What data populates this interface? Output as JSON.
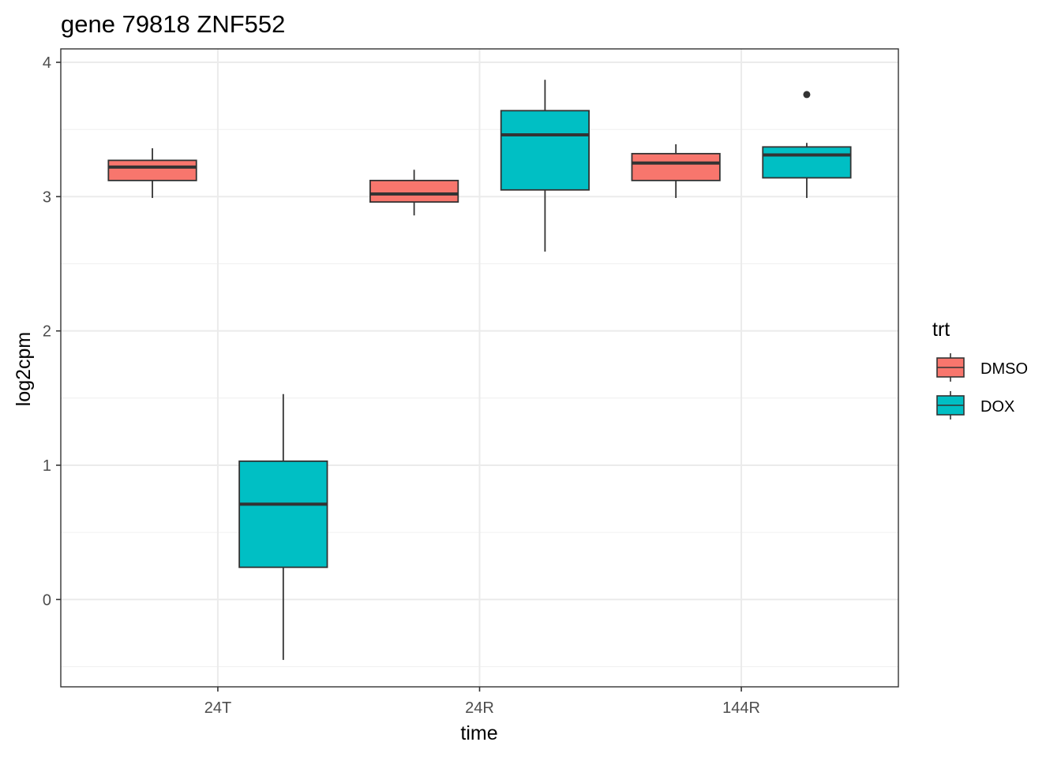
{
  "chart_data": {
    "type": "box",
    "title": "gene 79818 ZNF552",
    "xlabel": "time",
    "ylabel": "log2cpm",
    "categories": [
      "24T",
      "24R",
      "144R"
    ],
    "ylim": [
      -0.65,
      4.1
    ],
    "yticks": [
      0,
      1,
      2,
      3,
      4
    ],
    "grid": true,
    "legend": {
      "title": "trt",
      "position": "right",
      "entries": [
        "DMSO",
        "DOX"
      ]
    },
    "series": [
      {
        "name": "DMSO",
        "color": "#F8766D",
        "boxes": [
          {
            "category": "24T",
            "whisker_low": 2.99,
            "q1": 3.12,
            "median": 3.22,
            "q3": 3.27,
            "whisker_high": 3.36,
            "outliers": []
          },
          {
            "category": "24R",
            "whisker_low": 2.86,
            "q1": 2.96,
            "median": 3.02,
            "q3": 3.12,
            "whisker_high": 3.2,
            "outliers": []
          },
          {
            "category": "144R",
            "whisker_low": 2.99,
            "q1": 3.12,
            "median": 3.25,
            "q3": 3.32,
            "whisker_high": 3.39,
            "outliers": []
          }
        ]
      },
      {
        "name": "DOX",
        "color": "#00BFC4",
        "boxes": [
          {
            "category": "24T",
            "whisker_low": -0.45,
            "q1": 0.24,
            "median": 0.71,
            "q3": 1.03,
            "whisker_high": 1.53,
            "outliers": []
          },
          {
            "category": "24R",
            "whisker_low": 2.59,
            "q1": 3.05,
            "median": 3.46,
            "q3": 3.64,
            "whisker_high": 3.87,
            "outliers": []
          },
          {
            "category": "144R",
            "whisker_low": 2.99,
            "q1": 3.14,
            "median": 3.31,
            "q3": 3.37,
            "whisker_high": 3.4,
            "outliers": [
              3.76
            ]
          }
        ]
      }
    ]
  }
}
